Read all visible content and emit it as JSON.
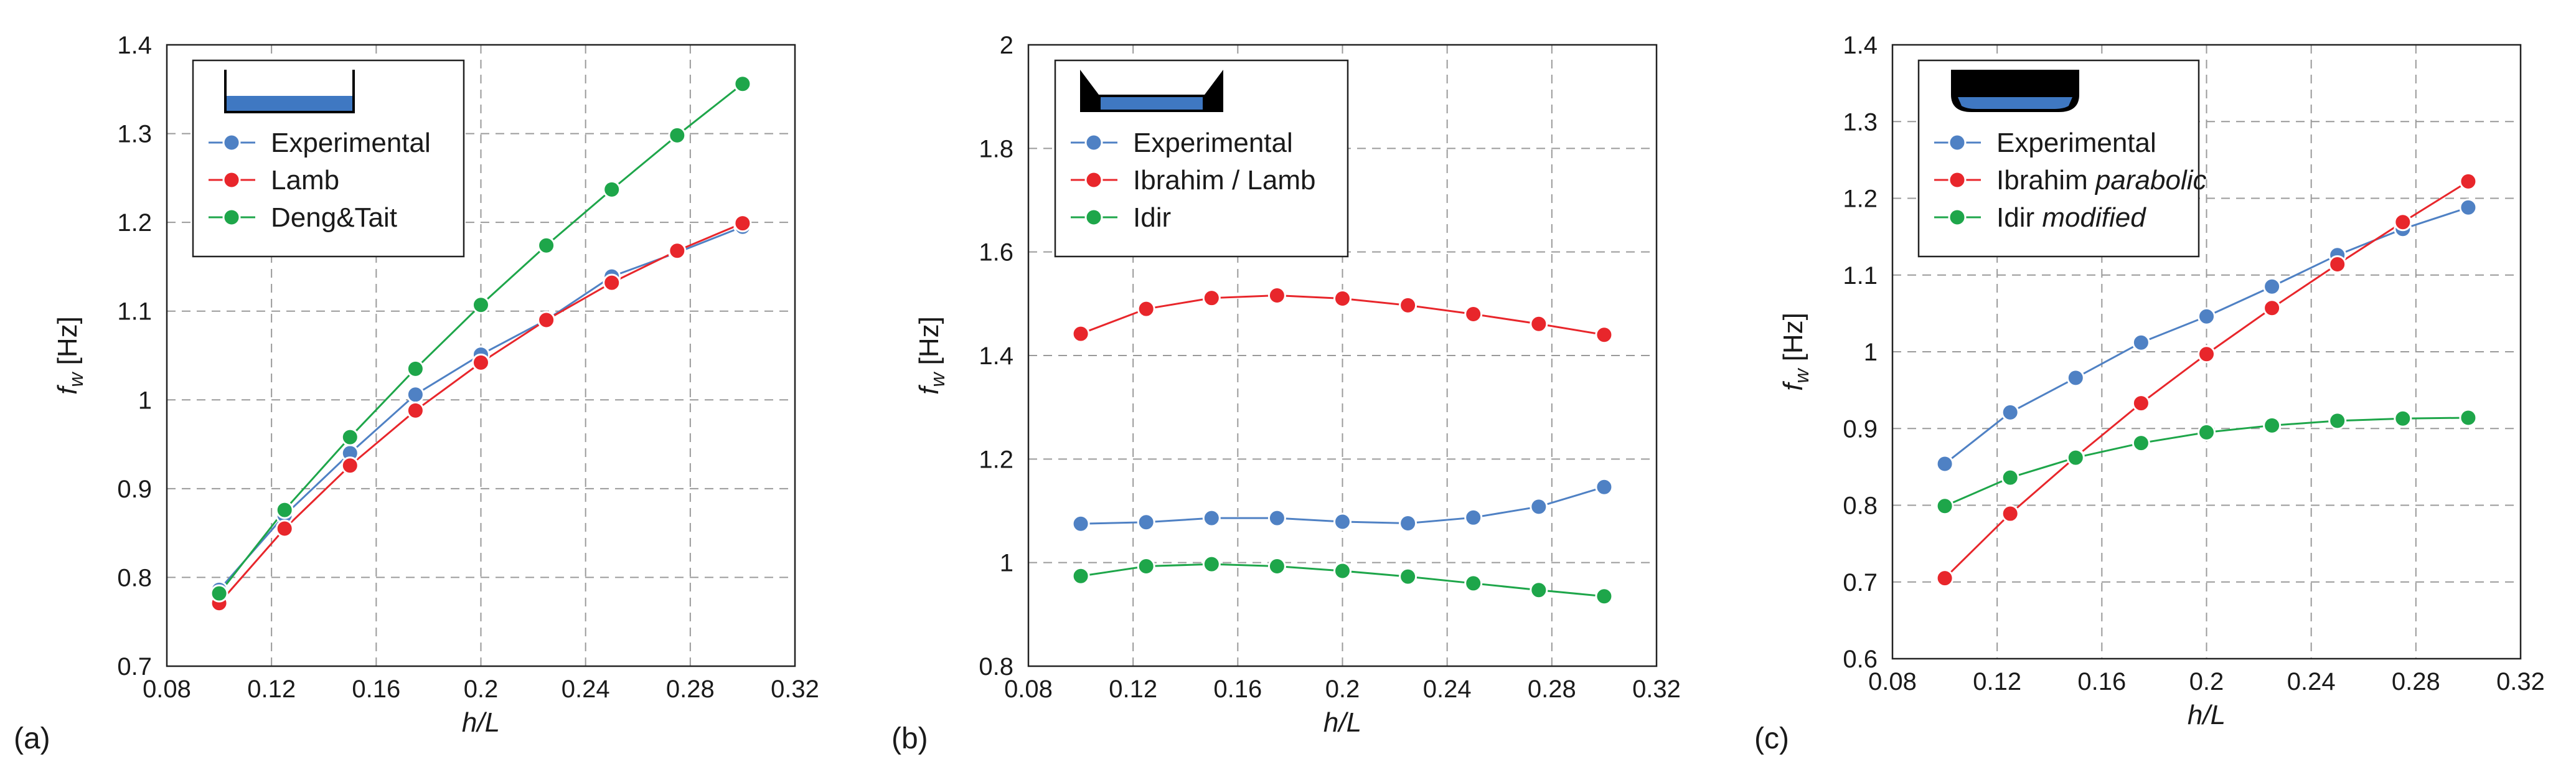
{
  "figure_labels": [
    "(a)",
    "(b)",
    "(c)"
  ],
  "colors": {
    "blue": "#4f81c4",
    "red": "#e8262b",
    "green": "#1ea64a",
    "grid": "#9a9a9a",
    "water": "#3f78c2"
  },
  "chart_data": [
    {
      "panel": "(a)",
      "type": "line",
      "xlabel": "h/L",
      "ylabel": "f_w [Hz]",
      "xlim": [
        0.08,
        0.32
      ],
      "ylim": [
        0.7,
        1.4
      ],
      "xticks": [
        "0.08",
        "0.12",
        "0.16",
        "0.2",
        "0.24",
        "0.28",
        "0.32"
      ],
      "yticks": [
        "0.7",
        "0.8",
        "0.9",
        "1",
        "1.1",
        "1.2",
        "1.3",
        "1.4"
      ],
      "x": [
        0.1,
        0.125,
        0.15,
        0.175,
        0.2,
        0.225,
        0.25,
        0.275,
        0.3
      ],
      "legend_icon": "rectangular-tank-icon",
      "series": [
        {
          "name": "Experimental",
          "name_parts": [
            "Experimental",
            ""
          ],
          "color": "#4f81c4",
          "values": [
            0.786,
            0.87,
            0.94,
            1.006,
            1.051,
            1.09,
            1.139,
            1.166,
            1.195
          ]
        },
        {
          "name": "Lamb",
          "name_parts": [
            "Lamb",
            ""
          ],
          "color": "#e8262b",
          "values": [
            0.771,
            0.855,
            0.926,
            0.988,
            1.042,
            1.09,
            1.132,
            1.168,
            1.199
          ]
        },
        {
          "name": "Deng&Tait",
          "name_parts": [
            "Deng&Tait",
            ""
          ],
          "color": "#1ea64a",
          "values": [
            0.782,
            0.876,
            0.958,
            1.035,
            1.107,
            1.174,
            1.237,
            1.298,
            1.356
          ]
        }
      ]
    },
    {
      "panel": "(b)",
      "type": "line",
      "xlabel": "h/L",
      "ylabel": "f_w [Hz]",
      "xlim": [
        0.08,
        0.32
      ],
      "ylim": [
        0.8,
        2.0
      ],
      "xticks": [
        "0.08",
        "0.12",
        "0.16",
        "0.2",
        "0.24",
        "0.28",
        "0.32"
      ],
      "yticks": [
        "0.8",
        "1",
        "1.2",
        "1.4",
        "1.6",
        "1.8",
        "2"
      ],
      "x": [
        0.1,
        0.125,
        0.15,
        0.175,
        0.2,
        0.225,
        0.25,
        0.275,
        0.3
      ],
      "legend_icon": "trapezoidal-tank-icon",
      "series": [
        {
          "name": "Experimental",
          "name_parts": [
            "Experimental",
            ""
          ],
          "color": "#4f81c4",
          "values": [
            1.075,
            1.078,
            1.086,
            1.086,
            1.079,
            1.076,
            1.087,
            1.108,
            1.146
          ]
        },
        {
          "name": "Ibrahim / Lamb",
          "name_parts": [
            "Ibrahim / Lamb",
            ""
          ],
          "color": "#e8262b",
          "values": [
            1.442,
            1.49,
            1.511,
            1.516,
            1.51,
            1.497,
            1.48,
            1.461,
            1.44
          ]
        },
        {
          "name": "Idir",
          "name_parts": [
            "Idir",
            ""
          ],
          "color": "#1ea64a",
          "values": [
            0.974,
            0.993,
            0.997,
            0.993,
            0.984,
            0.973,
            0.96,
            0.947,
            0.935
          ]
        }
      ]
    },
    {
      "panel": "(c)",
      "type": "line",
      "xlabel": "h/L",
      "ylabel": "f_w [Hz]",
      "xlim": [
        0.08,
        0.32
      ],
      "ylim": [
        0.6,
        1.4
      ],
      "xticks": [
        "0.08",
        "0.12",
        "0.16",
        "0.2",
        "0.24",
        "0.28",
        "0.32"
      ],
      "yticks": [
        "0.6",
        "0.7",
        "0.8",
        "0.9",
        "1",
        "1.1",
        "1.2",
        "1.3",
        "1.4"
      ],
      "x": [
        0.1,
        0.125,
        0.15,
        0.175,
        0.2,
        0.225,
        0.25,
        0.275,
        0.3
      ],
      "legend_icon": "rounded-tank-icon",
      "series": [
        {
          "name": "Experimental",
          "name_parts": [
            "Experimental",
            ""
          ],
          "color": "#4f81c4",
          "values": [
            0.854,
            0.921,
            0.966,
            1.012,
            1.046,
            1.085,
            1.126,
            1.16,
            1.188
          ]
        },
        {
          "name": "Ibrahim parabolic",
          "name_parts": [
            "Ibrahim ",
            "parabolic"
          ],
          "color": "#e8262b",
          "values": [
            0.705,
            0.789,
            0.863,
            0.933,
            0.997,
            1.057,
            1.114,
            1.169,
            1.222
          ]
        },
        {
          "name": "Idir modified",
          "name_parts": [
            "Idir ",
            "modified"
          ],
          "color": "#1ea64a",
          "values": [
            0.799,
            0.836,
            0.862,
            0.881,
            0.895,
            0.904,
            0.91,
            0.913,
            0.914
          ]
        }
      ]
    }
  ]
}
